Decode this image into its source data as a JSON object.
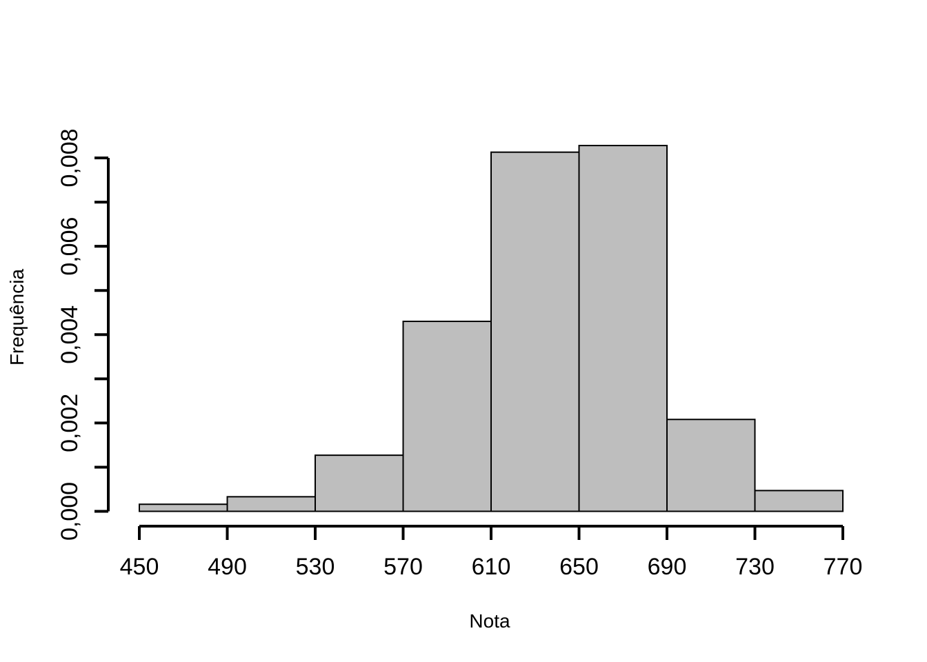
{
  "chart_data": {
    "type": "bar",
    "subtype": "histogram",
    "title": "",
    "xlabel": "Nota",
    "ylabel": "Frequência",
    "bin_edges": [
      450,
      490,
      530,
      570,
      610,
      650,
      690,
      730,
      770
    ],
    "values": [
      0.00016,
      0.00033,
      0.00127,
      0.0043,
      0.00813,
      0.00828,
      0.00208,
      0.00047
    ],
    "xlim": [
      450,
      770
    ],
    "ylim": [
      0,
      0.008
    ],
    "x_ticks": [
      450,
      490,
      530,
      570,
      610,
      650,
      690,
      730,
      770
    ],
    "x_tick_labels": [
      "450",
      "490",
      "530",
      "570",
      "610",
      "650",
      "690",
      "730",
      "770"
    ],
    "y_ticks": [
      0,
      0.001,
      0.002,
      0.003,
      0.004,
      0.005,
      0.006,
      0.007,
      0.008
    ],
    "y_tick_labels": [
      "0,000",
      "",
      "0,002",
      "",
      "0,004",
      "",
      "0,006",
      "",
      "0,008"
    ],
    "grid": false,
    "bar_color": "#bebebe",
    "edge_color": "#000000"
  }
}
